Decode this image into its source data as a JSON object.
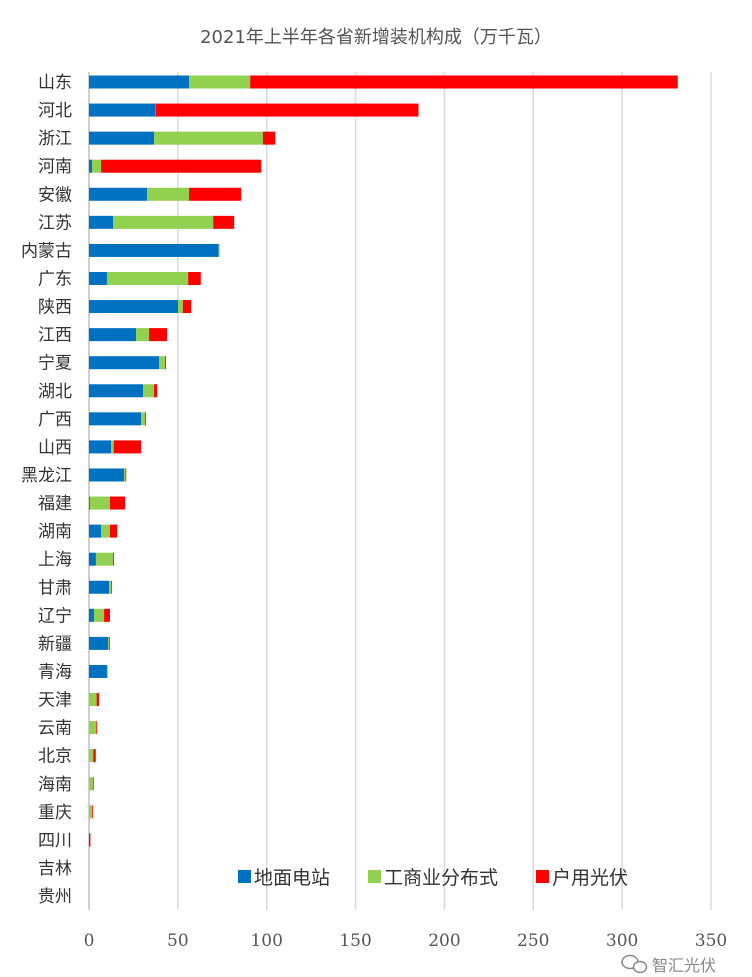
{
  "chart_data": {
    "type": "bar",
    "orientation": "horizontal",
    "stacked": true,
    "title": "2021年上半年各省新增装机构成（万千瓦）",
    "xlabel": "",
    "ylabel": "",
    "xlim": [
      0,
      350
    ],
    "xticks": [
      0,
      50,
      100,
      150,
      200,
      250,
      300,
      350
    ],
    "grid": true,
    "legend_position": "bottom-center-inside",
    "categories": [
      "山东",
      "河北",
      "浙江",
      "河南",
      "安徽",
      "江苏",
      "内蒙古",
      "广东",
      "陕西",
      "江西",
      "宁夏",
      "湖北",
      "广西",
      "山西",
      "黑龙江",
      "福建",
      "湖南",
      "上海",
      "甘肃",
      "辽宁",
      "新疆",
      "青海",
      "天津",
      "云南",
      "北京",
      "海南",
      "重庆",
      "四川",
      "吉林",
      "贵州"
    ],
    "series": [
      {
        "name": "地面电站",
        "color": "#0070C0",
        "values": [
          56.3,
          37.2,
          36.6,
          1.7,
          32.7,
          13.5,
          73.0,
          10.1,
          50.1,
          26.5,
          39.4,
          30.4,
          29.3,
          12.4,
          19.7,
          0.5,
          6.8,
          3.9,
          11.3,
          2.8,
          10.7,
          10.1,
          0,
          0,
          0,
          0,
          0,
          0,
          0,
          0
        ]
      },
      {
        "name": "工商业分布式",
        "color": "#92D050",
        "values": [
          34.4,
          0.2,
          61.3,
          5.1,
          23.6,
          56.4,
          0.5,
          45.7,
          2.7,
          7.3,
          3.4,
          6.2,
          2.2,
          1.5,
          0.8,
          11.3,
          5.0,
          9.6,
          1.1,
          5.7,
          0.6,
          0.2,
          4.3,
          4.1,
          2.4,
          2.2,
          1.7,
          0,
          0,
          0
        ]
      },
      {
        "name": "户用光伏",
        "color": "#FF0000",
        "values": [
          240.6,
          148.0,
          6.9,
          90.1,
          29.3,
          11.8,
          0,
          7.1,
          4.7,
          10.1,
          0.5,
          1.7,
          0.5,
          15.4,
          0.3,
          8.5,
          4.0,
          0.5,
          0.3,
          3.3,
          0.3,
          0,
          1.3,
          0.2,
          1.4,
          0.3,
          0.3,
          0.8,
          0,
          0
        ]
      }
    ]
  },
  "watermark": {
    "text": "智汇光伏",
    "icon": "wechat-icon"
  }
}
